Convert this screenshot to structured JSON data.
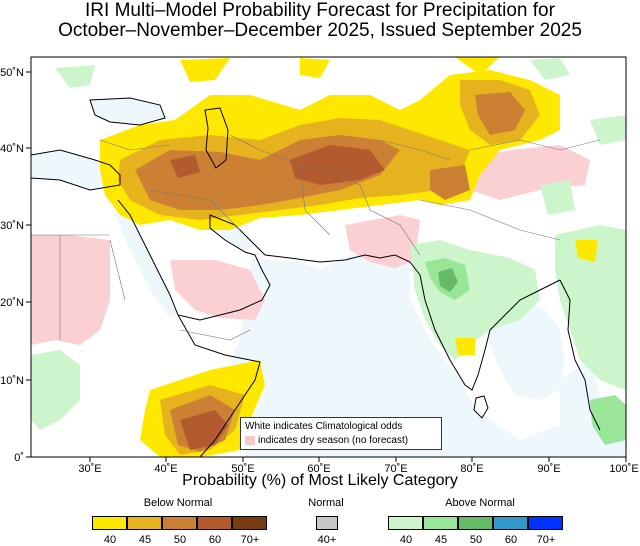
{
  "title": {
    "line1": "IRI Multi–Model Probability Forecast for Precipitation for",
    "line2": "October–November–December 2025, Issued September 2025"
  },
  "map": {
    "lon_range": [
      22,
      100
    ],
    "lat_range": [
      0,
      53
    ],
    "x_ticks": [
      "30˚E",
      "40˚E",
      "50˚E",
      "60˚E",
      "70˚E",
      "80˚E",
      "90˚E",
      "100˚E"
    ],
    "y_ticks": [
      "0˚",
      "10˚N",
      "20˚N",
      "30˚N",
      "40˚N",
      "50˚N"
    ],
    "colors": {
      "below_40": "#ffe800",
      "below_45": "#e6b31f",
      "below_50": "#cc8033",
      "below_60": "#b35a2e",
      "below_70": "#7a3a12",
      "normal_40": "#c8c8c8",
      "above_40": "#ccf5cc",
      "above_45": "#99e699",
      "above_50": "#66bb66",
      "above_60": "#3399cc",
      "above_70": "#0033ff",
      "dry": "#fbd0d3",
      "ocean": "#eef7fc"
    }
  },
  "note": {
    "line1": "White indicates Climatological odds",
    "line2": "indicates dry season (no forecast)"
  },
  "legend": {
    "subtitle": "Probability (%) of Most Likely Category",
    "below_label": "Below Normal",
    "normal_label": "Normal",
    "above_label": "Above Normal",
    "below_ticks": [
      "40",
      "45",
      "50",
      "60",
      "70+"
    ],
    "normal_ticks": [
      "40+"
    ],
    "above_ticks": [
      "40",
      "45",
      "50",
      "60",
      "70+"
    ]
  }
}
